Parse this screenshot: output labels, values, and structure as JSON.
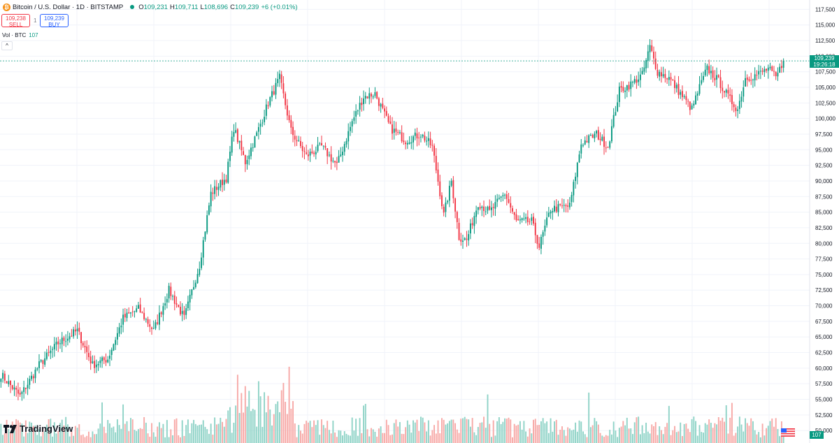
{
  "header": {
    "coin_letter": "₿",
    "symbol": "Bitcoin / U.S. Dollar · 1D · BITSTAMP",
    "open": "109,231",
    "high": "109,711",
    "low": "108,696",
    "close": "109,239",
    "open_prefix": "O",
    "high_prefix": "H",
    "low_prefix": "L",
    "close_prefix": "C",
    "change": "+6 (+0.01%)"
  },
  "trade": {
    "sell_price": "109,238",
    "sell_label": "SELL",
    "spread": "1",
    "buy_price": "109,239",
    "buy_label": "BUY"
  },
  "volume_legend": {
    "label": "Vol · BTC",
    "value": "107"
  },
  "collapse_icon": "^",
  "brand": "TradingView",
  "price_tag": {
    "price": "109,239",
    "countdown": "19:26:18"
  },
  "volume_tag": "107",
  "colors": {
    "up": "#089981",
    "down": "#f23645",
    "up_vol": "#8fd3c7",
    "down_vol": "#f7a9a7",
    "grid": "#f0f3fa"
  },
  "chart_data": {
    "type": "candlestick",
    "ylim": [
      48000,
      119000
    ],
    "y_ticks": [
      50000,
      52500,
      55000,
      57500,
      60000,
      62500,
      65000,
      67500,
      70000,
      72500,
      75000,
      77500,
      80000,
      82500,
      85000,
      87500,
      90000,
      92500,
      95000,
      97500,
      100000,
      102500,
      105000,
      107500,
      110000,
      112500,
      115000,
      117500
    ],
    "y_tick_labels": [
      "50,000",
      "52,500",
      "55,000",
      "57,500",
      "60,000",
      "62,500",
      "65,000",
      "67,500",
      "70,000",
      "72,500",
      "75,000",
      "77,500",
      "80,000",
      "82,500",
      "85,000",
      "87,500",
      "90,000",
      "92,500",
      "95,000",
      "97,500",
      "100,000",
      "102,500",
      "105,000",
      "107,500",
      "110,000",
      "112,500",
      "115,000",
      "117,500"
    ],
    "last_price": 109239,
    "close_anchors": [
      [
        0,
        59000
      ],
      [
        10,
        55500
      ],
      [
        20,
        60500
      ],
      [
        30,
        64000
      ],
      [
        40,
        66000
      ],
      [
        48,
        60500
      ],
      [
        56,
        61500
      ],
      [
        64,
        68000
      ],
      [
        72,
        69500
      ],
      [
        80,
        66000
      ],
      [
        88,
        72500
      ],
      [
        96,
        68000
      ],
      [
        104,
        76500
      ],
      [
        110,
        88000
      ],
      [
        118,
        90500
      ],
      [
        122,
        98500
      ],
      [
        128,
        93000
      ],
      [
        134,
        97500
      ],
      [
        140,
        102500
      ],
      [
        146,
        106500
      ],
      [
        152,
        98000
      ],
      [
        160,
        94000
      ],
      [
        168,
        95500
      ],
      [
        176,
        92500
      ],
      [
        184,
        99500
      ],
      [
        190,
        103500
      ],
      [
        196,
        104000
      ],
      [
        204,
        98500
      ],
      [
        212,
        96500
      ],
      [
        220,
        97500
      ],
      [
        226,
        95500
      ],
      [
        232,
        84500
      ],
      [
        236,
        90000
      ],
      [
        240,
        81000
      ],
      [
        244,
        80500
      ],
      [
        250,
        86500
      ],
      [
        256,
        85000
      ],
      [
        264,
        88000
      ],
      [
        270,
        83500
      ],
      [
        278,
        83500
      ],
      [
        282,
        79500
      ],
      [
        288,
        85500
      ],
      [
        298,
        86000
      ],
      [
        304,
        96000
      ],
      [
        312,
        97500
      ],
      [
        318,
        95500
      ],
      [
        324,
        104500
      ],
      [
        330,
        105500
      ],
      [
        336,
        107000
      ],
      [
        340,
        111500
      ],
      [
        344,
        107500
      ],
      [
        350,
        106500
      ],
      [
        356,
        104000
      ],
      [
        362,
        101500
      ],
      [
        366,
        105000
      ],
      [
        370,
        108000
      ],
      [
        376,
        106000
      ],
      [
        382,
        103000
      ],
      [
        386,
        101500
      ],
      [
        390,
        106500
      ],
      [
        396,
        107000
      ],
      [
        402,
        108000
      ],
      [
        406,
        106500
      ],
      [
        410,
        109239
      ]
    ]
  }
}
